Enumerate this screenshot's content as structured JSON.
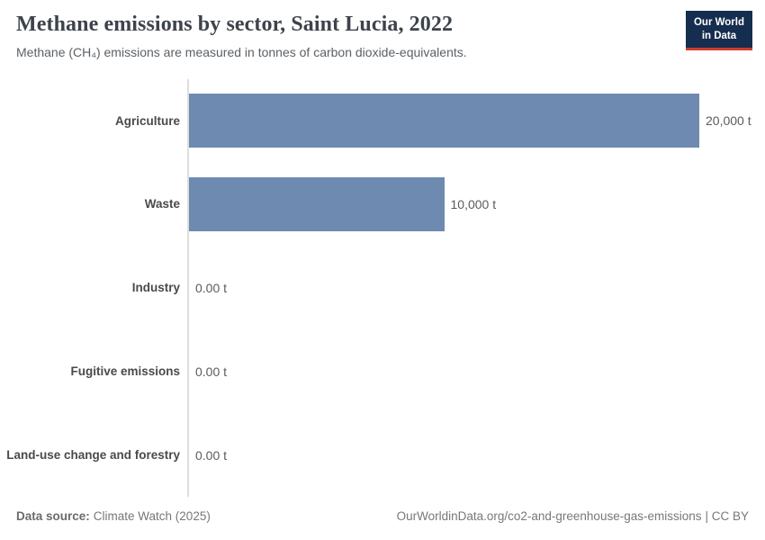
{
  "logo": {
    "line1": "Our World",
    "line2": "in Data",
    "bg_color": "#152d4e",
    "accent_color": "#cf3b32"
  },
  "chart_data": {
    "type": "bar",
    "orientation": "horizontal",
    "title": "Methane emissions by sector, Saint Lucia, 2022",
    "subtitle": "Methane (CH₄) emissions are measured in tonnes of carbon dioxide-equivalents.",
    "xlabel": "",
    "ylabel": "",
    "unit": "t",
    "xlim": [
      0,
      20000
    ],
    "grid": false,
    "legend": false,
    "bar_color": "#6e8ab0",
    "categories": [
      "Agriculture",
      "Waste",
      "Industry",
      "Fugitive emissions",
      "Land-use change and forestry"
    ],
    "values": [
      20000,
      10000,
      0,
      0,
      0
    ],
    "value_labels": [
      "20,000 t",
      "10,000 t",
      "0.00 t",
      "0.00 t",
      "0.00 t"
    ]
  },
  "footer": {
    "source_label": "Data source:",
    "source_value": "Climate Watch (2025)",
    "link": "OurWorldinData.org/co2-and-greenhouse-gas-emissions",
    "license": "| CC BY"
  }
}
